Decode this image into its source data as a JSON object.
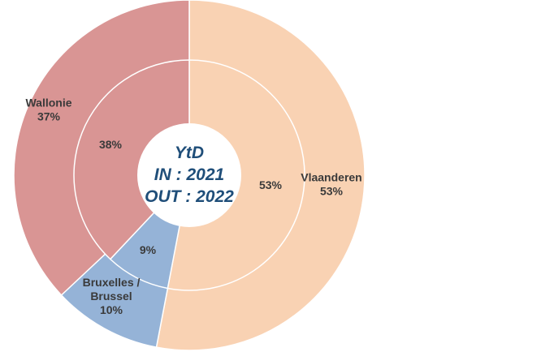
{
  "chart_data": {
    "type": "pie",
    "variant": "nested-donut",
    "center_text": [
      "YtD",
      "IN : 2021",
      "OUT : 2022"
    ],
    "categories": [
      "Vlaanderen",
      "Bruxelles / Brussel",
      "Wallonie"
    ],
    "colors": {
      "Vlaanderen": "#f9d2b3",
      "Bruxelles / Brussel": "#95b3d7",
      "Wallonie": "#d99594"
    },
    "series": [
      {
        "ring": "outer",
        "values": [
          53,
          10,
          37
        ],
        "labels": [
          "Vlaanderen\n53%",
          "Bruxelles /\nBrussel\n10%",
          "Wallonie\n37%"
        ]
      },
      {
        "ring": "inner",
        "values": [
          53,
          9,
          38
        ],
        "labels": [
          "53%",
          "9%",
          "38%"
        ]
      }
    ],
    "legend": "none"
  }
}
